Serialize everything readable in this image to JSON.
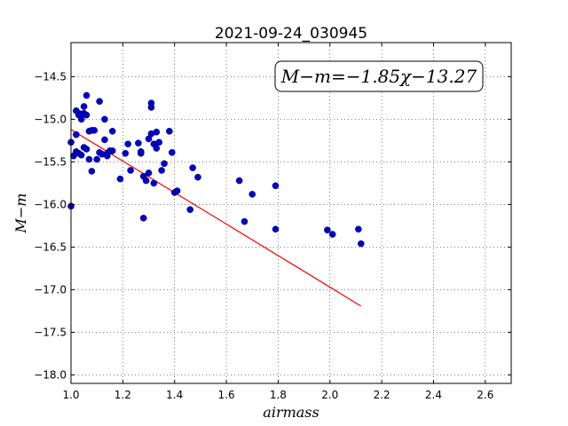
{
  "chart_data": {
    "type": "scatter",
    "title": "2021-09-24_030945",
    "xlabel": "airmass",
    "ylabel": "M−m",
    "xlim": [
      1.0,
      2.7
    ],
    "ylim": [
      -18.1,
      -14.1
    ],
    "xticks": [
      "1.0",
      "1.2",
      "1.4",
      "1.6",
      "1.8",
      "2.0",
      "2.2",
      "2.4",
      "2.6"
    ],
    "yticks": [
      "−14.5",
      "−15.0",
      "−15.5",
      "−16.0",
      "−16.5",
      "−17.0",
      "−17.5",
      "−18.0"
    ],
    "grid": true,
    "annotation": "M−m=−1.85χ−13.27",
    "fit": {
      "slope": -1.85,
      "intercept": -13.27,
      "x_range": [
        1.0,
        2.12
      ],
      "color": "#ff0000"
    },
    "points": {
      "color": "#0000cc",
      "x": [
        1.0,
        1.0,
        1.01,
        1.02,
        1.02,
        1.02,
        1.03,
        1.03,
        1.03,
        1.04,
        1.04,
        1.04,
        1.05,
        1.05,
        1.05,
        1.06,
        1.06,
        1.06,
        1.07,
        1.07,
        1.08,
        1.08,
        1.09,
        1.1,
        1.11,
        1.11,
        1.12,
        1.13,
        1.13,
        1.14,
        1.14,
        1.15,
        1.16,
        1.16,
        1.19,
        1.21,
        1.22,
        1.23,
        1.26,
        1.27,
        1.27,
        1.28,
        1.28,
        1.29,
        1.3,
        1.3,
        1.31,
        1.31,
        1.31,
        1.32,
        1.32,
        1.33,
        1.33,
        1.34,
        1.35,
        1.36,
        1.38,
        1.39,
        1.4,
        1.41,
        1.46,
        1.47,
        1.49,
        1.65,
        1.67,
        1.7,
        1.79,
        1.79,
        1.99,
        2.01,
        2.11,
        2.12
      ],
      "y": [
        -15.27,
        -16.02,
        -15.43,
        -14.9,
        -15.18,
        -15.38,
        -14.93,
        -15.4,
        -14.95,
        -15.0,
        -14.94,
        -15.42,
        -14.93,
        -14.85,
        -15.33,
        -14.72,
        -14.95,
        -15.35,
        -15.14,
        -15.47,
        -15.13,
        -15.61,
        -15.13,
        -15.47,
        -14.79,
        -15.39,
        -15.41,
        -15.24,
        -15.0,
        -15.4,
        -15.43,
        -15.37,
        -15.14,
        -15.37,
        -15.7,
        -15.4,
        -15.29,
        -15.6,
        -15.28,
        -15.4,
        -15.38,
        -15.67,
        -16.16,
        -15.72,
        -15.63,
        -15.23,
        -15.17,
        -14.81,
        -14.86,
        -15.29,
        -15.75,
        -15.15,
        -15.34,
        -15.27,
        -15.6,
        -15.52,
        -15.14,
        -15.39,
        -15.86,
        -15.84,
        -16.06,
        -15.57,
        -15.68,
        -15.72,
        -16.2,
        -15.88,
        -15.78,
        -16.29,
        -16.3,
        -16.35,
        -16.29,
        -16.46
      ]
    }
  }
}
